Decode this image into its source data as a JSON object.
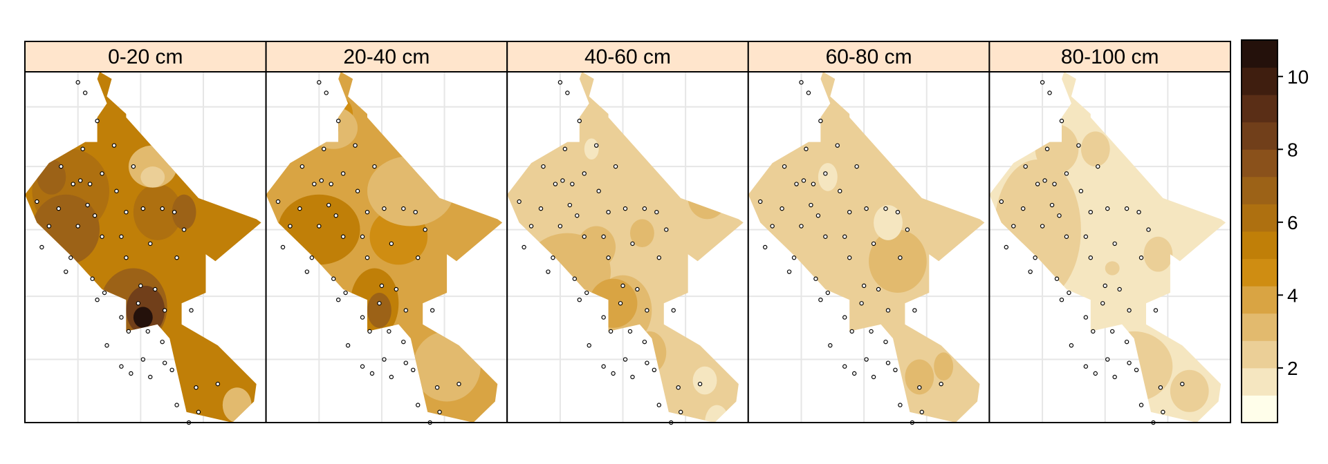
{
  "chart_data": {
    "type": "heatmap",
    "title": "",
    "xlabel": "",
    "ylabel": "",
    "panels": [
      {
        "label": "0-20 cm"
      },
      {
        "label": "20-40 cm"
      },
      {
        "label": "40-60 cm"
      },
      {
        "label": "60-80 cm"
      },
      {
        "label": "80-100 cm"
      }
    ],
    "colorkey": {
      "range": [
        0.5,
        11
      ],
      "ticks": [
        2,
        4,
        6,
        8,
        10
      ],
      "tick_labels": [
        "2",
        "4",
        "6",
        "8",
        "10"
      ],
      "breaks": [
        0.5,
        1.25,
        2.0,
        2.75,
        3.5,
        4.25,
        5.0,
        5.75,
        6.5,
        7.25,
        8.0,
        8.75,
        9.5,
        10.25,
        11.0
      ],
      "colors": [
        "#FFFEEA",
        "#F5E6C0",
        "#EBCF97",
        "#E2BA6E",
        "#D9A443",
        "#CF8D12",
        "#C07F08",
        "#AE7010",
        "#9C6217",
        "#8A511B",
        "#713F1A",
        "#5A2E16",
        "#3F1E0F",
        "#24110B",
        "#050202"
      ]
    },
    "grid": true,
    "sample_points": [
      [
        0.22,
        0.03
      ],
      [
        0.25,
        0.06
      ],
      [
        0.3,
        0.14
      ],
      [
        0.24,
        0.22
      ],
      [
        0.37,
        0.21
      ],
      [
        0.45,
        0.27
      ],
      [
        0.15,
        0.27
      ],
      [
        0.23,
        0.31
      ],
      [
        0.2,
        0.32
      ],
      [
        0.27,
        0.32
      ],
      [
        0.32,
        0.29
      ],
      [
        0.38,
        0.34
      ],
      [
        0.49,
        0.39
      ],
      [
        0.57,
        0.39
      ],
      [
        0.05,
        0.37
      ],
      [
        0.14,
        0.39
      ],
      [
        0.29,
        0.41
      ],
      [
        0.42,
        0.4
      ],
      [
        0.62,
        0.4
      ],
      [
        0.1,
        0.44
      ],
      [
        0.22,
        0.44
      ],
      [
        0.32,
        0.47
      ],
      [
        0.4,
        0.47
      ],
      [
        0.52,
        0.49
      ],
      [
        0.66,
        0.45
      ],
      [
        0.07,
        0.5
      ],
      [
        0.19,
        0.53
      ],
      [
        0.42,
        0.53
      ],
      [
        0.63,
        0.53
      ],
      [
        0.17,
        0.57
      ],
      [
        0.28,
        0.59
      ],
      [
        0.33,
        0.63
      ],
      [
        0.48,
        0.61
      ],
      [
        0.54,
        0.62
      ],
      [
        0.3,
        0.65
      ],
      [
        0.47,
        0.66
      ],
      [
        0.58,
        0.68
      ],
      [
        0.69,
        0.68
      ],
      [
        0.4,
        0.7
      ],
      [
        0.51,
        0.74
      ],
      [
        0.34,
        0.78
      ],
      [
        0.43,
        0.74
      ],
      [
        0.57,
        0.77
      ],
      [
        0.49,
        0.82
      ],
      [
        0.58,
        0.83
      ],
      [
        0.4,
        0.84
      ],
      [
        0.44,
        0.86
      ],
      [
        0.52,
        0.87
      ],
      [
        0.61,
        0.85
      ],
      [
        0.71,
        0.9
      ],
      [
        0.63,
        0.95
      ],
      [
        0.8,
        0.89
      ],
      [
        0.72,
        0.97
      ],
      [
        0.68,
        1.0
      ],
      [
        0.26,
        0.38
      ]
    ]
  }
}
